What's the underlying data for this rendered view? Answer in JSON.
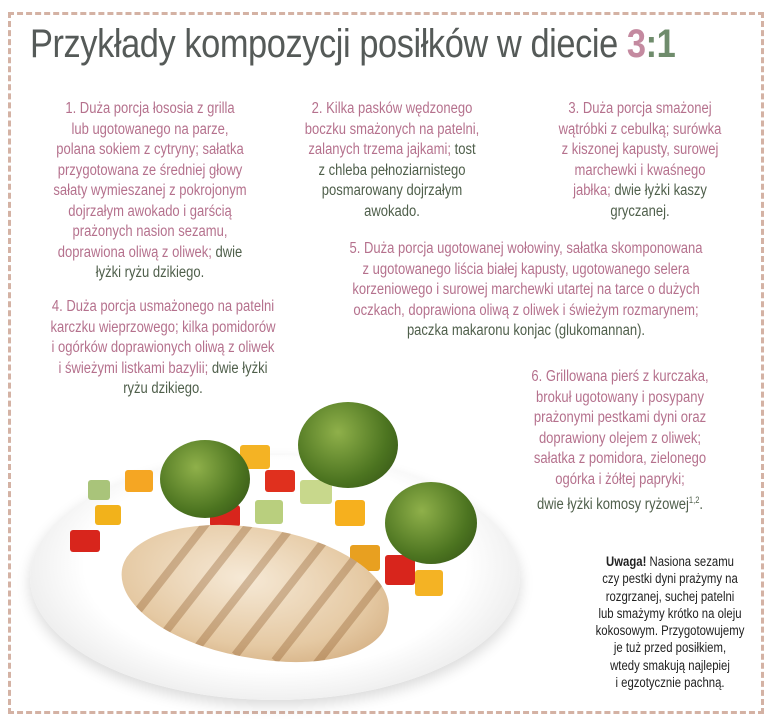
{
  "title": {
    "main": "Przykłady kompozycji posiłków w diecie ",
    "ratio_a": "3",
    "ratio_sep": ":",
    "ratio_b": "1"
  },
  "colors": {
    "protein_fat": "#b5718d",
    "carbs": "#4f5f4b",
    "title": "#555a58",
    "border": "#d4b2a4"
  },
  "meals": [
    {
      "id": "meal-1",
      "lines": [
        [
          [
            "p",
            "1. Duża porcja łososia z grilla"
          ]
        ],
        [
          [
            "p",
            "lub ugotowanego na parze,"
          ]
        ],
        [
          [
            "p",
            "polana sokiem z cytryny; sałatka"
          ]
        ],
        [
          [
            "p",
            "przygotowana ze średniej głowy"
          ]
        ],
        [
          [
            "p",
            "sałaty wymieszanej z pokrojonym"
          ]
        ],
        [
          [
            "p",
            "dojrzałym awokado i garścią"
          ]
        ],
        [
          [
            "p",
            "prażonych nasion sezamu,"
          ]
        ],
        [
          [
            "p",
            "doprawiona oliwą z oliwek; "
          ],
          [
            "g",
            "dwie"
          ]
        ],
        [
          [
            "g",
            "łyżki ryżu dzikiego."
          ]
        ]
      ]
    },
    {
      "id": "meal-2",
      "lines": [
        [
          [
            "p",
            "2. Kilka pasków wędzonego"
          ]
        ],
        [
          [
            "p",
            "boczku smażonych na patelni,"
          ]
        ],
        [
          [
            "p",
            "zalanych trzema jajkami; "
          ],
          [
            "g",
            "tost"
          ]
        ],
        [
          [
            "g",
            "z chleba pełnoziarnistego"
          ]
        ],
        [
          [
            "g",
            "posmarowany dojrzałym"
          ]
        ],
        [
          [
            "g",
            "awokado."
          ]
        ]
      ]
    },
    {
      "id": "meal-3",
      "lines": [
        [
          [
            "p",
            "3. Duża porcja smażonej"
          ]
        ],
        [
          [
            "p",
            "wątróbki z cebulką; surówka"
          ]
        ],
        [
          [
            "p",
            "z kiszonej kapusty, surowej"
          ]
        ],
        [
          [
            "p",
            "marchewki i kwaśnego"
          ]
        ],
        [
          [
            "p",
            "jabłka; "
          ],
          [
            "g",
            "dwie łyżki kaszy"
          ]
        ],
        [
          [
            "g",
            "gryczanej."
          ]
        ]
      ]
    },
    {
      "id": "meal-4",
      "lines": [
        [
          [
            "p",
            "4. Duża porcja usmażonego na patelni"
          ]
        ],
        [
          [
            "p",
            "karczku wieprzowego; kilka pomidorów"
          ]
        ],
        [
          [
            "p",
            "i ogórków doprawionych oliwą z oliwek"
          ]
        ],
        [
          [
            "p",
            "i świeżymi listkami bazylii; "
          ],
          [
            "g",
            "dwie łyżki"
          ]
        ],
        [
          [
            "g",
            "ryżu dzikiego."
          ]
        ]
      ]
    },
    {
      "id": "meal-5",
      "lines": [
        [
          [
            "p",
            "5. Duża porcja ugotowanej wołowiny, sałatka skomponowana"
          ]
        ],
        [
          [
            "p",
            "z ugotowanego liścia białej kapusty, ugotowanego selera"
          ]
        ],
        [
          [
            "p",
            "korzeniowego i surowej marchewki utartej na tarce o dużych"
          ]
        ],
        [
          [
            "p",
            "oczkach, doprawiona oliwą z oliwek i świeżym rozmarynem;"
          ]
        ],
        [
          [
            "g",
            "paczka makaronu konjac (glukomannan)."
          ]
        ]
      ]
    },
    {
      "id": "meal-6",
      "lines": [
        [
          [
            "p",
            "6. Grillowana pierś z kurczaka,"
          ]
        ],
        [
          [
            "p",
            "brokuł ugotowany i posypany"
          ]
        ],
        [
          [
            "p",
            "prażonymi pestkami dyni oraz"
          ]
        ],
        [
          [
            "p",
            "doprawiony olejem z oliwek;"
          ]
        ],
        [
          [
            "p",
            "sałatka z pomidora, zielonego"
          ]
        ],
        [
          [
            "p",
            "ogórka i żółtej papryki;"
          ]
        ],
        [
          [
            "g",
            "dwie łyżki komosy ryżowej"
          ],
          [
            "sup",
            "1,2"
          ],
          [
            "g",
            "."
          ]
        ]
      ]
    }
  ],
  "note": {
    "heading": "Uwaga!",
    "first_line_rest": " Nasiona sezamu",
    "lines": [
      "czy pestki dyni prażymy na",
      "rozgrzanej, suchej patelni",
      "lub smażymy krótko na oleju",
      "kokosowym. Przygotowujemy",
      "je tuż przed posiłkiem,",
      "wtedy smakują najlepiej",
      "i egzotycznie pachną."
    ]
  },
  "image": {
    "icon": "chicken-vegetable-plate-photo"
  }
}
